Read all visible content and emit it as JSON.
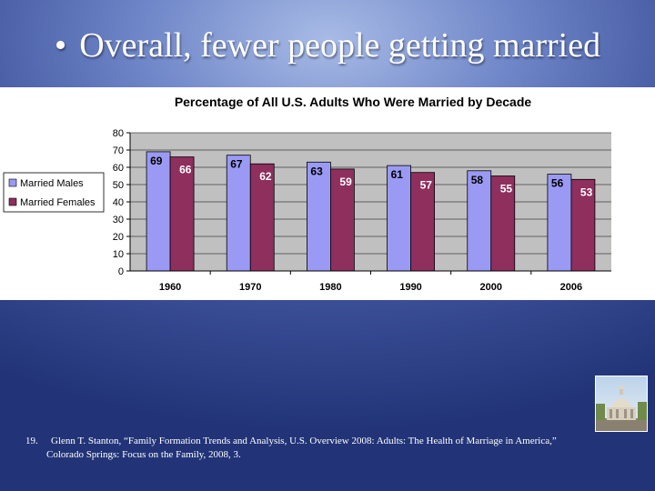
{
  "slide": {
    "bullet": "•",
    "title": "Overall, fewer people getting married"
  },
  "chart_data": {
    "type": "bar",
    "title": "Percentage of All U.S. Adults Who Were Married by Decade",
    "categories": [
      "1960",
      "1970",
      "1980",
      "1990",
      "2000",
      "2006"
    ],
    "series": [
      {
        "name": "Married Males",
        "color": "#9a9af5",
        "values": [
          69,
          67,
          63,
          61,
          58,
          56
        ]
      },
      {
        "name": "Married Females",
        "color": "#8e2f5e",
        "values": [
          66,
          62,
          59,
          57,
          55,
          53
        ]
      }
    ],
    "ylim": [
      0,
      80
    ],
    "yticks": [
      0,
      10,
      20,
      30,
      40,
      50,
      60,
      70,
      80
    ],
    "grid": true,
    "legend": "left",
    "xlabel": "",
    "ylabel": "",
    "plot_background": "#c0c0c0"
  },
  "footnote": {
    "number": "19.",
    "text": "Glenn T. Stanton, “Family Formation Trends and Analysis, U.S. Overview 2008: Adults: The Health of Marriage in America,” Colorado Springs: Focus on the Family, 2008, 3."
  },
  "logo": {
    "icon": "capitol-dome-icon"
  }
}
